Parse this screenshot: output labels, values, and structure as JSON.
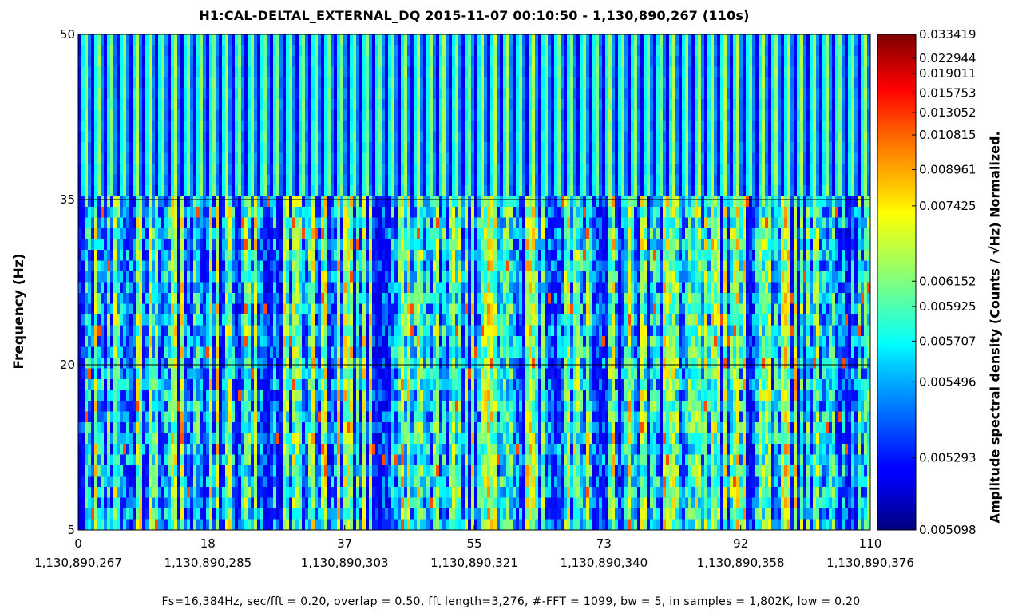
{
  "chart_data": {
    "type": "heatmap",
    "title": "H1:CAL-DELTAL_EXTERNAL_DQ 2015-11-07 00:10:50 - 1,130,890,267 (110s)",
    "xlabel": "",
    "ylabel": "Frequency (Hz)",
    "xlim": [
      0,
      110
    ],
    "ylim": [
      5,
      50
    ],
    "x_ticks": [
      {
        "value": 0,
        "label": "0",
        "sublabel": "1,130,890,267"
      },
      {
        "value": 18,
        "label": "18",
        "sublabel": "1,130,890,285"
      },
      {
        "value": 37,
        "label": "37",
        "sublabel": "1,130,890,303"
      },
      {
        "value": 55,
        "label": "55",
        "sublabel": "1,130,890,321"
      },
      {
        "value": 73,
        "label": "73",
        "sublabel": "1,130,890,340"
      },
      {
        "value": 92,
        "label": "92",
        "sublabel": "1,130,890,358"
      },
      {
        "value": 110,
        "label": "110",
        "sublabel": "1,130,890,376"
      }
    ],
    "y_ticks": [
      5,
      20,
      35,
      50
    ],
    "horizontal_lines": [
      20,
      35
    ],
    "colormap": "jet",
    "colorbar": {
      "label": "Amplitude spectral density (Counts / √Hz) Normalized.",
      "min": 0.005098,
      "max": 0.033419,
      "ticks": [
        {
          "label": "0.033419",
          "frac": 1.0
        },
        {
          "label": "0.022944",
          "frac": 0.952
        },
        {
          "label": "0.019011",
          "frac": 0.921
        },
        {
          "label": "0.015753",
          "frac": 0.882
        },
        {
          "label": "0.013052",
          "frac": 0.842
        },
        {
          "label": "0.010815",
          "frac": 0.797
        },
        {
          "label": "0.008961",
          "frac": 0.727
        },
        {
          "label": "0.007425",
          "frac": 0.654
        },
        {
          "label": "0.006152",
          "frac": 0.502
        },
        {
          "label": "0.005925",
          "frac": 0.451
        },
        {
          "label": "0.005707",
          "frac": 0.381
        },
        {
          "label": "0.005496",
          "frac": 0.299
        },
        {
          "label": "0.005293",
          "frac": 0.146
        },
        {
          "label": "0.005098",
          "frac": 0.0
        }
      ]
    }
  },
  "footer": "Fs=16,384Hz, sec/fft = 0.20, overlap = 0.50, fft length=3,276, #-FFT = 1099, bw = 5, in samples = 1,802K, low = 0.20"
}
